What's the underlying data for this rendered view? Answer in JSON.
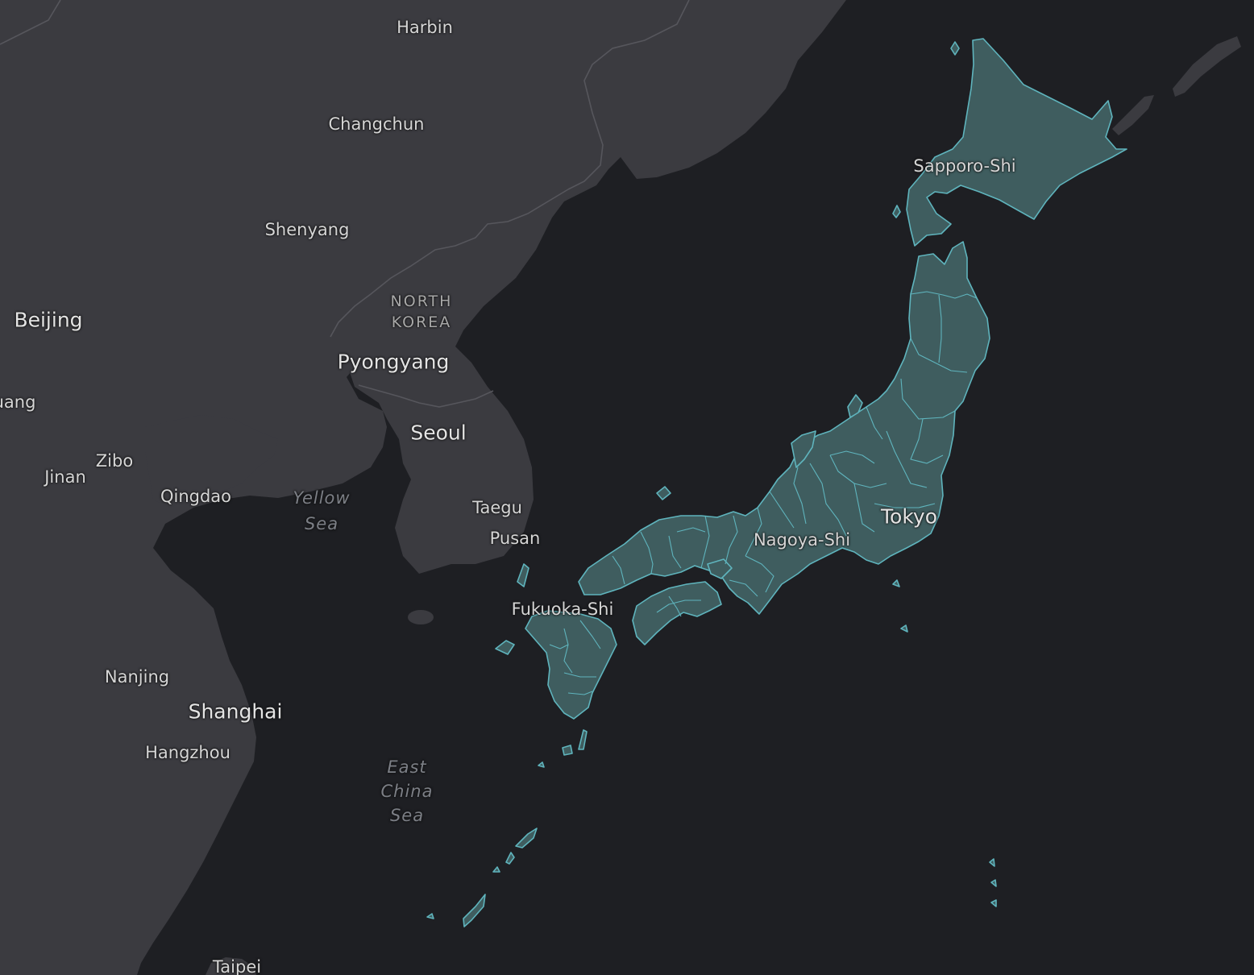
{
  "map": {
    "colors": {
      "water": "#1e1f23",
      "land": "#3b3b40",
      "boundary": "#56565c",
      "highlight_fill": "#3f5d5f",
      "highlight_stroke": "#5fb4bd"
    },
    "highlighted_country": "Japan",
    "labels": {
      "harbin": "Harbin",
      "changchun": "Changchun",
      "shenyang": "Shenyang",
      "beijing": "Beijing",
      "jinan": "Jinan",
      "zibo": "Zibo",
      "qingdao": "Qingdao",
      "partial_left": "uang",
      "north": "NORTH",
      "korea": "KOREA",
      "pyongyang": "Pyongyang",
      "seoul": "Seoul",
      "taegu": "Taegu",
      "pusan": "Pusan",
      "yellow": "Yellow",
      "sea_yellow": "Sea",
      "nanjing": "Nanjing",
      "shanghai": "Shanghai",
      "hangzhou": "Hangzhou",
      "east": "East",
      "china": "China",
      "sea_ec": "Sea",
      "taipei": "Taipei",
      "sapporo": "Sapporo-Shi",
      "tokyo": "Tokyo",
      "nagoya": "Nagoya-Shi",
      "fukuoka": "Fukuoka-Shi"
    }
  }
}
